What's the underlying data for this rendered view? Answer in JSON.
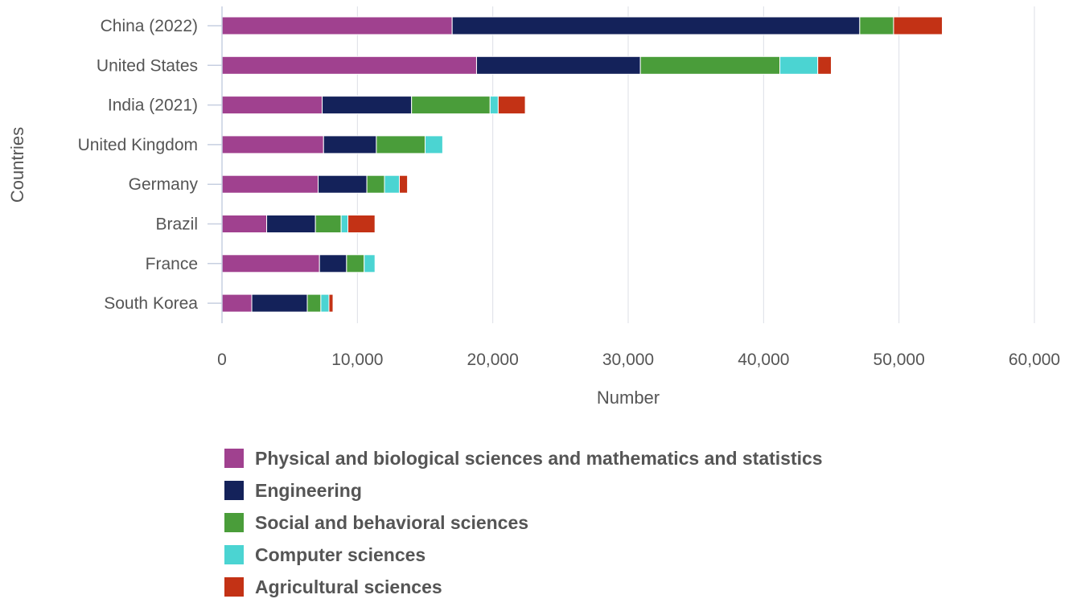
{
  "chart_data": {
    "type": "bar",
    "orientation": "horizontal",
    "stacked": true,
    "title": "",
    "xlabel": "Number",
    "ylabel": "Countries",
    "xlim": [
      0,
      60000
    ],
    "xticks": [
      0,
      10000,
      20000,
      30000,
      40000,
      50000,
      60000
    ],
    "xtick_labels": [
      "0",
      "10,000",
      "20,000",
      "30,000",
      "40,000",
      "50,000",
      "60,000"
    ],
    "grid": "vertical",
    "legend_position": "bottom",
    "categories": [
      "China (2022)",
      "United States",
      "India (2021)",
      "United Kingdom",
      "Germany",
      "Brazil",
      "France",
      "South Korea"
    ],
    "series": [
      {
        "name": "Physical and biological sciences and mathematics and statistics",
        "color": "#a0418f",
        "values": [
          17000,
          18800,
          7400,
          7500,
          7100,
          3300,
          7200,
          2200
        ]
      },
      {
        "name": "Engineering",
        "color": "#14225a",
        "values": [
          30100,
          12100,
          6600,
          3900,
          3600,
          3600,
          2000,
          4100
        ]
      },
      {
        "name": "Social and behavioral sciences",
        "color": "#4a9d3a",
        "values": [
          2500,
          10300,
          5800,
          3600,
          1300,
          1900,
          1300,
          1000
        ]
      },
      {
        "name": "Computer sciences",
        "color": "#4bd4d2",
        "values": [
          0,
          2800,
          600,
          1300,
          1100,
          500,
          800,
          600
        ]
      },
      {
        "name": "Agricultural sciences",
        "color": "#c33215",
        "values": [
          3600,
          1000,
          2000,
          0,
          600,
          2000,
          0,
          300
        ]
      }
    ]
  }
}
